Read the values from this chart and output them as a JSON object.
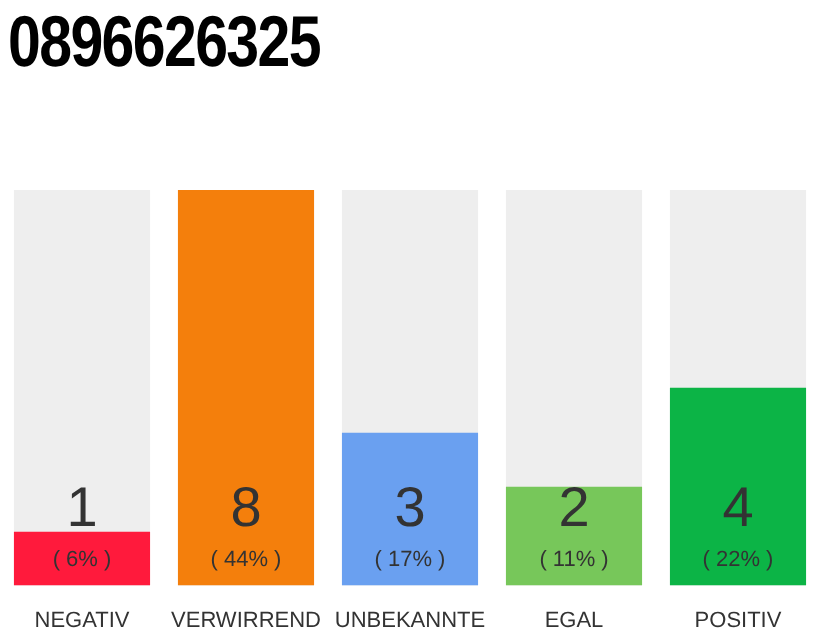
{
  "chart_data": {
    "type": "bar",
    "title": "0896626325",
    "categories": [
      "NEGATIV",
      "VERWIRREND",
      "UNBEKANNTE",
      "EGAL",
      "POSITIV"
    ],
    "values": [
      6,
      44,
      17,
      11,
      22
    ],
    "colors": [
      "#ff1a3c",
      "#f47f0c",
      "#6aa0f0",
      "#77c75a",
      "#0cb446"
    ],
    "value_labels": [
      "1\n( 6% )",
      "8\n( 44% )",
      "3\n( 17% )",
      "2\n( 11% )",
      "4\n( 22% )"
    ],
    "grid": false,
    "legend": false
  }
}
